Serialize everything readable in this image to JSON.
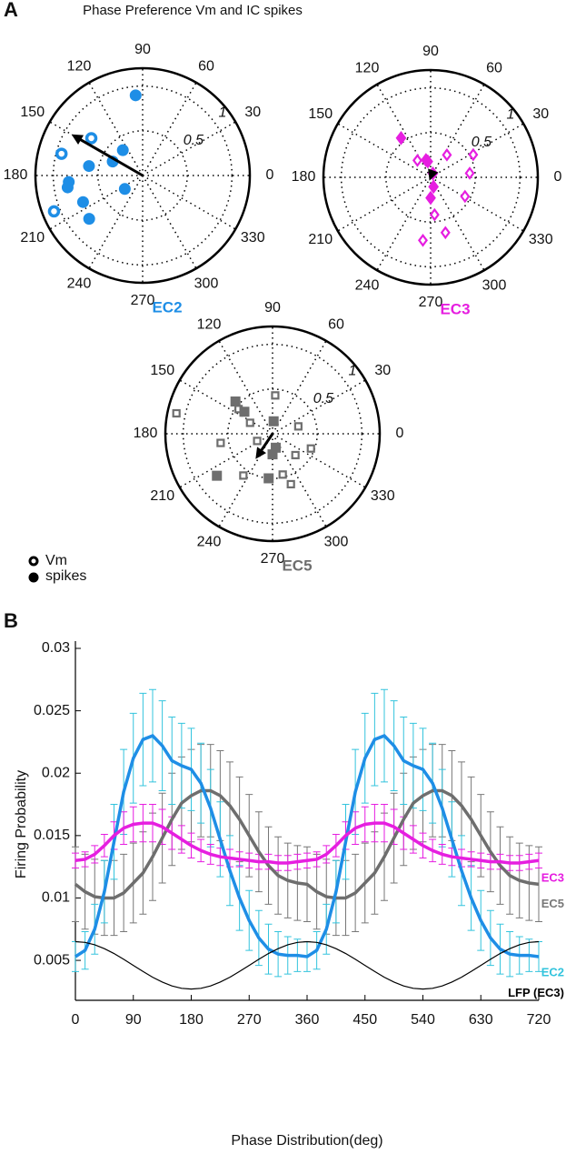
{
  "figure": {
    "title": "Phase Preference Vm and IC spikes",
    "panels": [
      "A",
      "B"
    ],
    "legend": [
      "Vm",
      "spikes"
    ]
  },
  "chart_data": [
    {
      "type": "polar",
      "label": "EC2",
      "color": "#1e8ee6",
      "marker": "circle",
      "rlim": [
        0,
        1.2
      ],
      "rticks": [
        0.5,
        1
      ],
      "angle_ticks": [
        0,
        30,
        60,
        90,
        120,
        150,
        180,
        210,
        240,
        270,
        300,
        330
      ],
      "vm": {
        "angles": [
          165,
          144,
          202
        ],
        "radii": [
          0.94,
          0.71,
          1.07
        ]
      },
      "spikes": {
        "angles": [
          95,
          128,
          155,
          217,
          170,
          185,
          189,
          204,
          219
        ],
        "radii": [
          0.9,
          0.36,
          0.37,
          0.25,
          0.61,
          0.83,
          0.85,
          0.73,
          0.77
        ]
      },
      "arrow": {
        "angle": 150,
        "r": 0.92
      }
    },
    {
      "type": "polar",
      "label": "EC3",
      "color": "#e61ee0",
      "marker": "diamond",
      "rlim": [
        0,
        1.2
      ],
      "rticks": [
        0.5,
        1
      ],
      "angle_ticks": [
        0,
        30,
        60,
        90,
        120,
        150,
        180,
        210,
        240,
        270,
        300,
        330
      ],
      "vm": {
        "angles": [
          128,
          54,
          28,
          6,
          331,
          285,
          263,
          276
        ],
        "radii": [
          0.24,
          0.31,
          0.54,
          0.44,
          0.44,
          0.64,
          0.71,
          0.42
        ]
      },
      "spikes": {
        "angles": [
          127,
          105,
          100,
          287,
          270,
          60
        ],
        "radii": [
          0.55,
          0.2,
          0.18,
          0.11,
          0.23,
          0.05
        ]
      },
      "arrow": {
        "angle": 250,
        "r": 0.04
      }
    },
    {
      "type": "polar",
      "label": "EC5",
      "color": "#6e6e6e",
      "marker": "square",
      "rlim": [
        0,
        1.2
      ],
      "rticks": [
        0.5,
        1
      ],
      "angle_ticks": [
        0,
        30,
        60,
        90,
        120,
        150,
        180,
        210,
        240,
        270,
        300,
        330
      ],
      "vm": {
        "angles": [
          86,
          144,
          154,
          168,
          190,
          235,
          284,
          290,
          317,
          339,
          16,
          205
        ],
        "radii": [
          0.43,
          0.47,
          0.28,
          1.1,
          0.59,
          0.57,
          0.47,
          0.6,
          0.35,
          0.46,
          0.3,
          0.19
        ]
      },
      "spikes": {
        "angles": [
          139,
          142,
          85,
          270,
          265,
          217,
          283
        ],
        "radii": [
          0.55,
          0.4,
          0.14,
          0.23,
          0.5,
          0.78,
          0.16
        ]
      },
      "arrow": {
        "angle": 236,
        "r": 0.34
      }
    },
    {
      "type": "line",
      "xlabel": "Phase Distribution(deg)",
      "ylabel": "Firing Probability",
      "xlim": [
        0,
        720
      ],
      "xticks": [
        0,
        90,
        180,
        270,
        360,
        450,
        540,
        630,
        720
      ],
      "ylim": [
        0.0018,
        0.03
      ],
      "yticks": [
        0.005,
        0.01,
        0.015,
        0.02,
        0.025,
        0.03
      ],
      "x": [
        0,
        15,
        30,
        45,
        60,
        75,
        90,
        105,
        120,
        135,
        150,
        165,
        180,
        195,
        210,
        225,
        240,
        255,
        270,
        285,
        300,
        315,
        330,
        345,
        360,
        375,
        390,
        405,
        420,
        435,
        450,
        465,
        480,
        495,
        510,
        525,
        540,
        555,
        570,
        585,
        600,
        615,
        630,
        645,
        660,
        675,
        690,
        705,
        720
      ],
      "series": [
        {
          "name": "EC5",
          "color": "#6e6e6e",
          "error_color": "#777777",
          "values": [
            0.0111,
            0.0105,
            0.0101,
            0.01,
            0.01,
            0.0104,
            0.0112,
            0.012,
            0.0133,
            0.0148,
            0.0163,
            0.0176,
            0.0182,
            0.0186,
            0.0186,
            0.0182,
            0.0174,
            0.0163,
            0.015,
            0.0137,
            0.0126,
            0.0118,
            0.0114,
            0.0112,
            0.0111,
            0.0105,
            0.0101,
            0.01,
            0.01,
            0.0104,
            0.0112,
            0.012,
            0.0133,
            0.0148,
            0.0163,
            0.0176,
            0.0182,
            0.0186,
            0.0186,
            0.0182,
            0.0174,
            0.0163,
            0.015,
            0.0137,
            0.0126,
            0.0118,
            0.0114,
            0.0112,
            0.0111
          ],
          "errors": [
            0.003,
            0.003,
            0.003,
            0.003,
            0.003,
            0.0031,
            0.0032,
            0.0033,
            0.0035,
            0.0036,
            0.0037,
            0.0037,
            0.0037,
            0.0037,
            0.0037,
            0.0036,
            0.0035,
            0.0034,
            0.0033,
            0.0032,
            0.0031,
            0.0031,
            0.003,
            0.003,
            0.003,
            0.003,
            0.003,
            0.003,
            0.003,
            0.0031,
            0.0032,
            0.0033,
            0.0035,
            0.0036,
            0.0037,
            0.0037,
            0.0037,
            0.0037,
            0.0037,
            0.0036,
            0.0035,
            0.0034,
            0.0033,
            0.0032,
            0.0031,
            0.0031,
            0.003,
            0.003,
            0.003
          ]
        },
        {
          "name": "EC2",
          "color": "#1e8ee6",
          "error_color": "#33c4dd",
          "values": [
            0.0053,
            0.0058,
            0.0075,
            0.0105,
            0.0145,
            0.0185,
            0.0212,
            0.0227,
            0.023,
            0.0222,
            0.021,
            0.0206,
            0.0203,
            0.0192,
            0.0172,
            0.0147,
            0.0122,
            0.01,
            0.0082,
            0.0068,
            0.0059,
            0.0055,
            0.0054,
            0.0054,
            0.0053,
            0.0058,
            0.0075,
            0.0105,
            0.0145,
            0.0185,
            0.0212,
            0.0227,
            0.023,
            0.0222,
            0.021,
            0.0206,
            0.0203,
            0.0192,
            0.0172,
            0.0147,
            0.0122,
            0.01,
            0.0082,
            0.0068,
            0.0059,
            0.0055,
            0.0054,
            0.0054,
            0.0053
          ],
          "errors": [
            0.0012,
            0.0015,
            0.002,
            0.0025,
            0.003,
            0.0034,
            0.0036,
            0.0037,
            0.0037,
            0.0036,
            0.0035,
            0.0034,
            0.0033,
            0.0032,
            0.0031,
            0.003,
            0.0028,
            0.0026,
            0.0024,
            0.0022,
            0.002,
            0.0018,
            0.0015,
            0.0013,
            0.0012,
            0.0015,
            0.002,
            0.0025,
            0.003,
            0.0034,
            0.0036,
            0.0037,
            0.0037,
            0.0036,
            0.0035,
            0.0034,
            0.0033,
            0.0032,
            0.0031,
            0.003,
            0.0028,
            0.0026,
            0.0024,
            0.0022,
            0.002,
            0.0018,
            0.0015,
            0.0013,
            0.0012
          ]
        },
        {
          "name": "EC3",
          "color": "#e61ee0",
          "error_color": "#e61ee0",
          "values": [
            0.013,
            0.0131,
            0.0135,
            0.0142,
            0.015,
            0.0156,
            0.0159,
            0.016,
            0.016,
            0.0157,
            0.0152,
            0.0147,
            0.0142,
            0.0138,
            0.0135,
            0.0133,
            0.0132,
            0.0131,
            0.013,
            0.0129,
            0.0129,
            0.0128,
            0.0128,
            0.0129,
            0.013,
            0.0131,
            0.0135,
            0.0142,
            0.015,
            0.0156,
            0.0159,
            0.016,
            0.016,
            0.0157,
            0.0152,
            0.0147,
            0.0142,
            0.0138,
            0.0135,
            0.0133,
            0.0132,
            0.0131,
            0.013,
            0.0129,
            0.0129,
            0.0128,
            0.0128,
            0.0129,
            0.013
          ],
          "errors": [
            0.0006,
            0.0006,
            0.0007,
            0.0009,
            0.0011,
            0.0013,
            0.0014,
            0.0015,
            0.0015,
            0.0014,
            0.0013,
            0.0011,
            0.001,
            0.0009,
            0.0008,
            0.0007,
            0.0007,
            0.0006,
            0.0006,
            0.0006,
            0.0006,
            0.0006,
            0.0006,
            0.0006,
            0.0006,
            0.0006,
            0.0007,
            0.0009,
            0.0011,
            0.0013,
            0.0014,
            0.0015,
            0.0015,
            0.0014,
            0.0013,
            0.0011,
            0.001,
            0.0009,
            0.0008,
            0.0007,
            0.0007,
            0.0006,
            0.0006,
            0.0006,
            0.0006,
            0.0006,
            0.0006,
            0.0006,
            0.0006
          ]
        },
        {
          "name": "LFP (EC3)",
          "color": "#000000",
          "values": [
            0.0065,
            0.00644,
            0.00625,
            0.00594,
            0.00555,
            0.00509,
            0.0046,
            0.00411,
            0.00365,
            0.00326,
            0.00295,
            0.00276,
            0.0027,
            0.00276,
            0.00295,
            0.00326,
            0.00365,
            0.00411,
            0.0046,
            0.00509,
            0.00555,
            0.00594,
            0.00625,
            0.00644,
            0.0065,
            0.00644,
            0.00625,
            0.00594,
            0.00555,
            0.00509,
            0.0046,
            0.00411,
            0.00365,
            0.00326,
            0.00295,
            0.00276,
            0.0027,
            0.00276,
            0.00295,
            0.00326,
            0.00365,
            0.00411,
            0.0046,
            0.00509,
            0.00555,
            0.00594,
            0.00625,
            0.00644,
            0.0065
          ]
        }
      ]
    }
  ]
}
